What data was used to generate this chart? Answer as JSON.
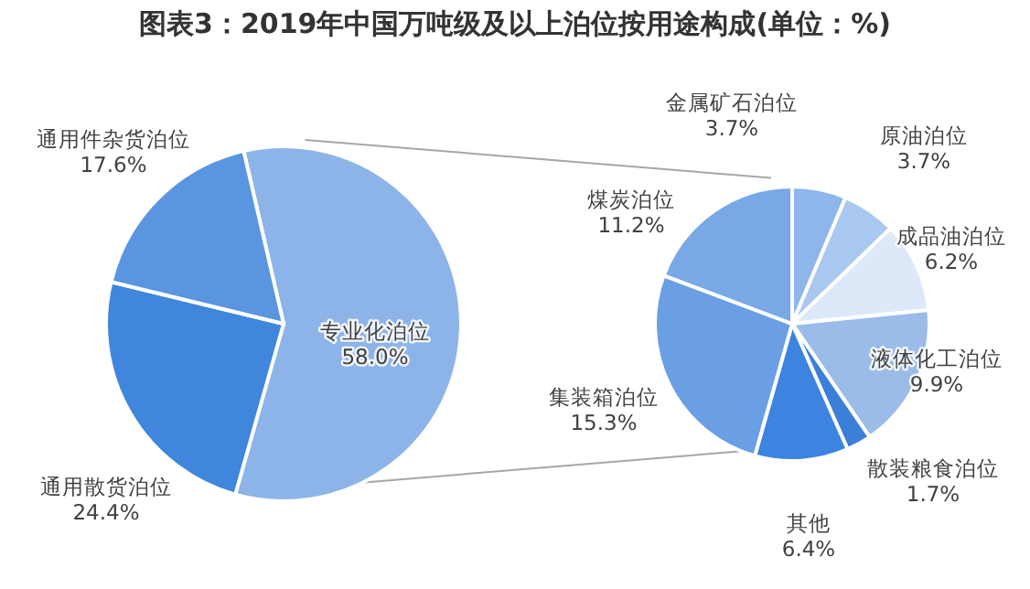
{
  "chart_data": [
    {
      "type": "pie",
      "title": "图表3：2019年中国万吨级及以上泊位按用途构成(单位：%)",
      "categories": [
        "专业化泊位",
        "通用散货泊位",
        "通用件杂货泊位"
      ],
      "values": [
        58.0,
        24.4,
        17.6
      ],
      "colors": [
        "#8db4e8",
        "#3f86dc",
        "#5a95e0"
      ],
      "value_labels": [
        "58.0%",
        "24.4%",
        "17.6%"
      ]
    },
    {
      "type": "pie",
      "categories": [
        "金属矿石泊位",
        "原油泊位",
        "成品油泊位",
        "液体化工泊位",
        "散装粮食泊位",
        "其他",
        "集装箱泊位",
        "煤炭泊位"
      ],
      "values": [
        3.7,
        3.7,
        6.2,
        9.9,
        1.7,
        6.4,
        15.3,
        11.2
      ],
      "colors": [
        "#8fb6ea",
        "#a9c8f0",
        "#dde9f8",
        "#9bbce8",
        "#3b7fd8",
        "#3c84e0",
        "#6a9fe3",
        "#78a8e6"
      ],
      "value_labels": [
        "3.7%",
        "3.7%",
        "6.2%",
        "9.9%",
        "1.7%",
        "6.4%",
        "15.3%",
        "11.2%"
      ]
    }
  ]
}
